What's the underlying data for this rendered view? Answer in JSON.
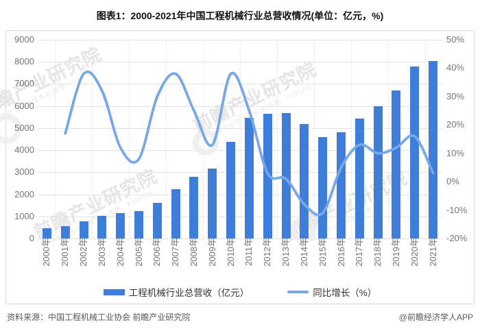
{
  "title": "图表1：2000-2021年中国工程机械行业总营收情况(单位：亿元，%)",
  "source_left": "资料来源：中国工程机械工业协会 前瞻产业研究院",
  "source_right": "@前瞻经济学人APP",
  "watermark": {
    "text": "前瞻产业研究院",
    "subtext": "中国产业咨询领导者(股票：839599)"
  },
  "colors": {
    "bar": "#3e7dd9",
    "line": "#76a8e8",
    "grid": "#e4e4e4",
    "axis_text": "#757575",
    "panel_border": "#d9d9d9",
    "title_text": "#111111",
    "watermark": "#e1e1e1"
  },
  "chart_data": {
    "type": "bar+line combo",
    "title": "图表1：2000-2021年中国工程机械行业总营收情况(单位：亿元，%)",
    "legend_position": "bottom",
    "grid": "horizontal",
    "categories": [
      "2000年",
      "2001年",
      "2002年",
      "2003年",
      "2004年",
      "2005年",
      "2006年",
      "2007年",
      "2008年",
      "2009年",
      "2010年",
      "2011年",
      "2012年",
      "2013年",
      "2014年",
      "2015年",
      "2016年",
      "2017年",
      "2018年",
      "2019年",
      "2020年",
      "2021年"
    ],
    "series": [
      {
        "name": "工程机械行业总营收（亿元）",
        "type": "bar",
        "axis": "left",
        "values": [
          460,
          560,
          770,
          1020,
          1150,
          1250,
          1620,
          2230,
          2790,
          3160,
          4370,
          5460,
          5650,
          5680,
          5180,
          4590,
          4800,
          5420,
          5990,
          6710,
          7780,
          8030
        ]
      },
      {
        "name": "同比增长（%）",
        "type": "line",
        "axis": "right",
        "values": [
          null,
          17,
          38,
          32,
          12,
          8,
          30,
          38,
          25,
          13,
          38,
          25,
          3,
          1,
          -8,
          -11,
          5,
          13,
          10,
          12,
          16,
          3
        ]
      }
    ],
    "left_axis": {
      "min": 0,
      "max": 9000,
      "step": 1000,
      "ticks": [
        "0",
        "1000",
        "2000",
        "3000",
        "4000",
        "5000",
        "6000",
        "7000",
        "8000",
        "9000"
      ]
    },
    "right_axis": {
      "min": -20,
      "max": 50,
      "step": 10,
      "format": "percent",
      "ticks": [
        "-20%",
        "-10%",
        "0%",
        "10%",
        "20%",
        "30%",
        "40%",
        "50%"
      ]
    }
  }
}
